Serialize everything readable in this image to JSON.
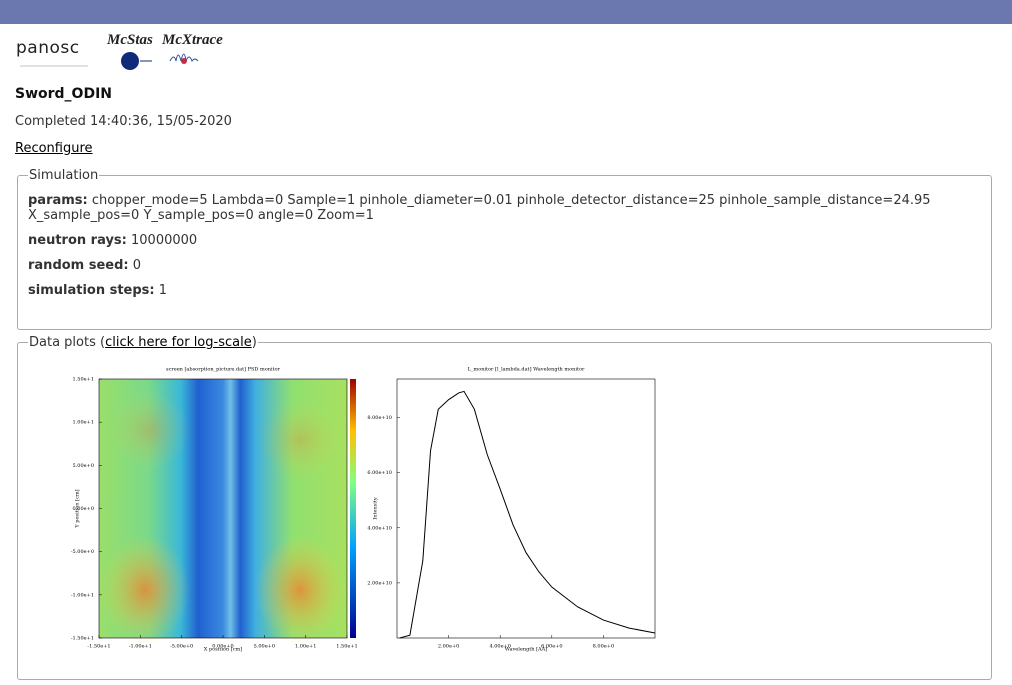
{
  "header": {
    "logos": [
      "panosc",
      "McStas",
      "McXtrace"
    ]
  },
  "title": "Sword_ODIN",
  "status": "Completed 14:40:36, 15/05-2020",
  "reconfigure": "Reconfigure",
  "simulation": {
    "legend": "Simulation",
    "fields": [
      {
        "label": "params:",
        "value": "chopper_mode=5 Lambda=0 Sample=1 pinhole_diameter=0.01 pinhole_detector_distance=25 pinhole_sample_distance=24.95 X_sample_pos=0 Y_sample_pos=0 angle=0 Zoom=1"
      },
      {
        "label": "neutron rays:",
        "value": "10000000"
      },
      {
        "label": "random seed:",
        "value": "0"
      },
      {
        "label": "simulation steps:",
        "value": "1"
      }
    ]
  },
  "data_plots": {
    "legend_prefix": "Data plots (",
    "log_link": "click here for log-scale",
    "legend_suffix": ")",
    "plots": [
      {
        "type": "heatmap",
        "title": "screen [absorption_picture.dat] PSD monitor",
        "x_label": "X position [cm]",
        "y_label": "Y position [cm]",
        "xlim": [
          -15,
          15
        ],
        "ylim": [
          -15,
          15
        ],
        "xticks": [
          {
            "value": -15,
            "label": "-1.50e+1"
          },
          {
            "value": -10,
            "label": "-1.00e+1"
          },
          {
            "value": -5,
            "label": "-5.00e+0"
          },
          {
            "value": 0,
            "label": "0.00e+0"
          },
          {
            "value": 5,
            "label": "5.00e+0"
          },
          {
            "value": 10,
            "label": "1.00e+1"
          },
          {
            "value": 15,
            "label": "1.50e+1"
          }
        ],
        "yticks": [
          {
            "value": -15,
            "label": "-1.50e+1"
          },
          {
            "value": -10,
            "label": "-1.00e+1"
          },
          {
            "value": -5,
            "label": "-5.00e+0"
          },
          {
            "value": 0,
            "label": "0.00e+0"
          },
          {
            "value": 5,
            "label": "5.00e+0"
          },
          {
            "value": 10,
            "label": "1.00e+1"
          },
          {
            "value": 15,
            "label": "1.50e+1"
          }
        ]
      },
      {
        "type": "line",
        "title": "L_monitor [l_lambda.dat] Wavelength monitor",
        "x_label": "Wavelength [AA]",
        "y_label": "Intensity",
        "color": "#000000",
        "xlim": [
          0,
          10
        ],
        "ylim": [
          0,
          94000000000
        ],
        "xticks": [
          {
            "value": 2,
            "label": "2.00e+0"
          },
          {
            "value": 4,
            "label": "4.00e+0"
          },
          {
            "value": 6,
            "label": "6.00e+0"
          },
          {
            "value": 8,
            "label": "8.00e+0"
          }
        ],
        "yticks": [
          {
            "value": 20000000000,
            "label": "2.00e+10"
          },
          {
            "value": 40000000000,
            "label": "4.00e+10"
          },
          {
            "value": 60000000000,
            "label": "6.00e+10"
          },
          {
            "value": 80000000000,
            "label": "8.00e+10"
          }
        ],
        "x": [
          0.1,
          0.5,
          1.0,
          1.3,
          1.6,
          2.0,
          2.4,
          2.6,
          3.0,
          3.5,
          4.0,
          4.5,
          5.0,
          5.5,
          6.0,
          7.0,
          8.0,
          9.0,
          10.0
        ],
        "values": [
          0,
          1000000000,
          28000000000,
          68000000000,
          83000000000,
          86500000000,
          89000000000,
          89500000000,
          83000000000,
          66500000000,
          54000000000,
          41000000000,
          31000000000,
          24000000000,
          18500000000,
          11300000000,
          6500000000,
          3600000000,
          1800000000
        ]
      }
    ]
  }
}
